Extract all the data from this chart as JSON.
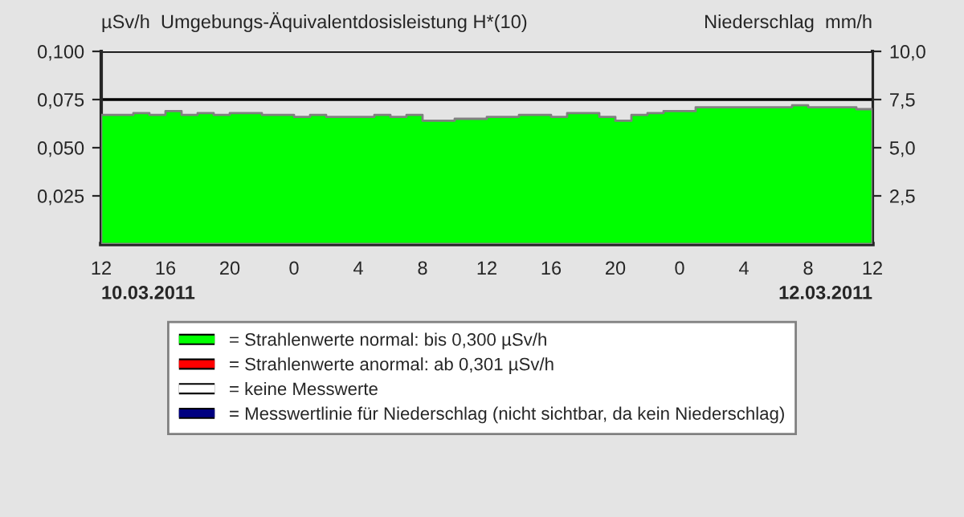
{
  "chart_data": {
    "type": "area",
    "ylabel": "µSv/h  Umgebungs-Äquivalentdosisleistung H*(10)",
    "y2label": "Niederschlag  mm/h",
    "x": [
      "2011-03-10T12:00",
      "2011-03-10T13:00",
      "2011-03-10T14:00",
      "2011-03-10T15:00",
      "2011-03-10T16:00",
      "2011-03-10T17:00",
      "2011-03-10T18:00",
      "2011-03-10T19:00",
      "2011-03-10T20:00",
      "2011-03-10T21:00",
      "2011-03-10T22:00",
      "2011-03-10T23:00",
      "2011-03-11T00:00",
      "2011-03-11T01:00",
      "2011-03-11T02:00",
      "2011-03-11T03:00",
      "2011-03-11T04:00",
      "2011-03-11T05:00",
      "2011-03-11T06:00",
      "2011-03-11T07:00",
      "2011-03-11T08:00",
      "2011-03-11T09:00",
      "2011-03-11T10:00",
      "2011-03-11T11:00",
      "2011-03-11T12:00",
      "2011-03-11T13:00",
      "2011-03-11T14:00",
      "2011-03-11T15:00",
      "2011-03-11T16:00",
      "2011-03-11T17:00",
      "2011-03-11T18:00",
      "2011-03-11T19:00",
      "2011-03-11T20:00",
      "2011-03-11T21:00",
      "2011-03-11T22:00",
      "2011-03-11T23:00",
      "2011-03-12T00:00",
      "2011-03-12T01:00",
      "2011-03-12T02:00",
      "2011-03-12T03:00",
      "2011-03-12T04:00",
      "2011-03-12T05:00",
      "2011-03-12T06:00",
      "2011-03-12T07:00",
      "2011-03-12T08:00",
      "2011-03-12T09:00",
      "2011-03-12T10:00",
      "2011-03-12T11:00",
      "2011-03-12T12:00"
    ],
    "series": [
      {
        "name": "= Strahlenwerte normal: bis 0,300 µSv/h",
        "color": "#00ff00",
        "values": [
          0.067,
          0.067,
          0.068,
          0.067,
          0.069,
          0.067,
          0.068,
          0.067,
          0.068,
          0.068,
          0.067,
          0.067,
          0.066,
          0.067,
          0.066,
          0.066,
          0.066,
          0.067,
          0.066,
          0.067,
          0.064,
          0.064,
          0.065,
          0.065,
          0.066,
          0.066,
          0.067,
          0.067,
          0.066,
          0.068,
          0.068,
          0.066,
          0.064,
          0.067,
          0.068,
          0.069,
          0.069,
          0.071,
          0.071,
          0.071,
          0.071,
          0.071,
          0.071,
          0.072,
          0.071,
          0.071,
          0.071,
          0.07,
          0.07
        ]
      },
      {
        "name": "= Strahlenwerte anormal: ab 0,301 µSv/h",
        "color": "#ff0000",
        "values": [
          null,
          null,
          null,
          null,
          null,
          null,
          null,
          null,
          null,
          null,
          null,
          null,
          null,
          null,
          null,
          null,
          null,
          null,
          null,
          null,
          null,
          null,
          null,
          null,
          null,
          null,
          null,
          null,
          null,
          null,
          null,
          null,
          null,
          null,
          null,
          null,
          null,
          null,
          null,
          null,
          null,
          null,
          null,
          null,
          null,
          null,
          null,
          null,
          null
        ]
      },
      {
        "name": "= keine Messwerte",
        "color": "#ffffff",
        "values": [
          null,
          null,
          null,
          null,
          null,
          null,
          null,
          null,
          null,
          null,
          null,
          null,
          null,
          null,
          null,
          null,
          null,
          null,
          null,
          null,
          null,
          null,
          null,
          null,
          null,
          null,
          null,
          null,
          null,
          null,
          null,
          null,
          null,
          null,
          null,
          null,
          null,
          null,
          null,
          null,
          null,
          null,
          null,
          null,
          null,
          null,
          null,
          null,
          null
        ]
      },
      {
        "name": "= Messwertlinie für Niederschlag (nicht sichtbar, da kein Niederschlag)",
        "color": "#000080",
        "values": [
          null,
          null,
          null,
          null,
          null,
          null,
          null,
          null,
          null,
          null,
          null,
          null,
          null,
          null,
          null,
          null,
          null,
          null,
          null,
          null,
          null,
          null,
          null,
          null,
          null,
          null,
          null,
          null,
          null,
          null,
          null,
          null,
          null,
          null,
          null,
          null,
          null,
          null,
          null,
          null,
          null,
          null,
          null,
          null,
          null,
          null,
          null,
          null,
          null
        ]
      }
    ],
    "xlim": [
      "2011-03-10T12:00",
      "2011-03-12T12:00"
    ],
    "xticks": [
      {
        "value": "2011-03-10T12:00",
        "label": "12"
      },
      {
        "value": "2011-03-10T16:00",
        "label": "16"
      },
      {
        "value": "2011-03-10T20:00",
        "label": "20"
      },
      {
        "value": "2011-03-11T00:00",
        "label": "0"
      },
      {
        "value": "2011-03-11T04:00",
        "label": "4"
      },
      {
        "value": "2011-03-11T08:00",
        "label": "8"
      },
      {
        "value": "2011-03-11T12:00",
        "label": "12"
      },
      {
        "value": "2011-03-11T16:00",
        "label": "16"
      },
      {
        "value": "2011-03-11T20:00",
        "label": "20"
      },
      {
        "value": "2011-03-12T00:00",
        "label": "0"
      },
      {
        "value": "2011-03-12T04:00",
        "label": "4"
      },
      {
        "value": "2011-03-12T08:00",
        "label": "8"
      },
      {
        "value": "2011-03-12T12:00",
        "label": "12"
      }
    ],
    "ylim": [
      0,
      0.1
    ],
    "yticks": [
      {
        "value": 0.025,
        "label": "0,025"
      },
      {
        "value": 0.05,
        "label": "0,050"
      },
      {
        "value": 0.075,
        "label": "0,075"
      },
      {
        "value": 0.1,
        "label": "0,100"
      }
    ],
    "y2lim": [
      0,
      10
    ],
    "y2ticks": [
      {
        "value": 2.5,
        "label": "2,5"
      },
      {
        "value": 5,
        "label": "5,0"
      },
      {
        "value": 7.5,
        "label": "7,5"
      },
      {
        "value": 10,
        "label": "10,0"
      }
    ],
    "annotations": [
      "10.03.2011",
      "12.03.2011"
    ],
    "grid": "y",
    "legend": "bottom"
  }
}
